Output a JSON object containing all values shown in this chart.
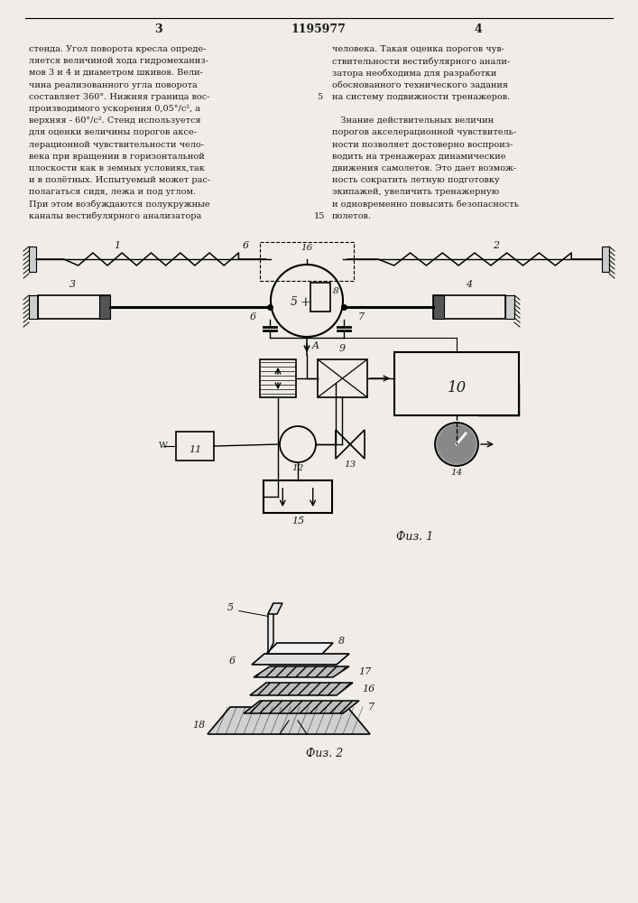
{
  "page_title": "1195977",
  "page_num_left": "3",
  "page_num_right": "4",
  "bg_color": "#f0ede8",
  "text_color": "#1a1a1a",
  "text_left_col": [
    "стенда. Угол поворота кресла опреде-",
    "ляется величиной хода гидромеханиз-",
    "мов 3 и 4 и диаметром шкивов. Вели-",
    "чина реализованного угла поворота",
    "составляет 360°. Нижняя граница вос-",
    "производимого ускорения 0,05°/c², а",
    "верхняя - 60°/c². Стенд используется",
    "для оценки величины порогов аксе-",
    "лерационной чувствительности чело-",
    "века при вращении в горизонтальной",
    "плоскости как в земных условиях,так",
    "и в полётных. Испытуемый может рас-",
    "полагаться сидя, лежа и под углом.",
    "При этом возбуждаются полукружные",
    "каналы вестибулярного анализатора"
  ],
  "text_right_col": [
    "человека. Такая оценка порогов чув-",
    "ствительности вестибулярного анали-",
    "затора необходима для разработки",
    "обоснованного технического задания",
    "на систему подвижности тренажеров.",
    "",
    "   Знание действительных величин",
    "порогов акселерационной чувствитель-",
    "ности позволяет достоверно воспроиз-",
    "водить на тренажерах динамические",
    "движения самолетов. Это дает возмож-",
    "ность сократить летную подготовку",
    "экипажей, увеличить тренажерную",
    "и одновременно повысить безопасность",
    "полетов."
  ],
  "fig1_caption": "Физ. 1",
  "fig2_caption": "Физ. 2"
}
